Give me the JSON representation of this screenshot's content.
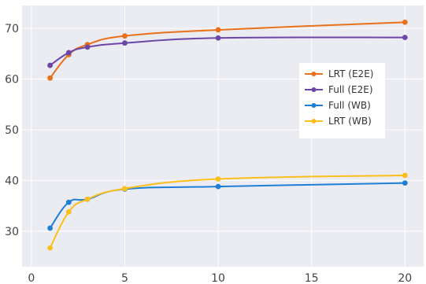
{
  "chart_data": {
    "type": "line",
    "x_ticks": [
      0,
      5,
      10,
      15,
      20
    ],
    "y_ticks": [
      30,
      40,
      50,
      60,
      70
    ],
    "xlim": [
      -0.5,
      21
    ],
    "ylim": [
      23,
      74.5
    ],
    "grid": true,
    "legend_position": "center-right",
    "series": [
      {
        "name": "LRT (E2E)",
        "color": "#e8711a",
        "x": [
          1,
          2,
          3,
          5,
          10,
          20
        ],
        "y": [
          60.2,
          64.8,
          66.8,
          68.5,
          69.7,
          71.2
        ]
      },
      {
        "name": "Full (E2E)",
        "color": "#6c47a8",
        "x": [
          1,
          2,
          3,
          5,
          10,
          20
        ],
        "y": [
          62.7,
          65.2,
          66.3,
          67.1,
          68.1,
          68.2
        ]
      },
      {
        "name": "Full (WB)",
        "color": "#1e7fd4",
        "x": [
          1,
          2,
          3,
          5,
          10,
          20
        ],
        "y": [
          30.6,
          35.7,
          36.3,
          38.3,
          38.8,
          39.5
        ]
      },
      {
        "name": "LRT (WB)",
        "color": "#fbbf1c",
        "x": [
          1,
          2,
          3,
          5,
          10,
          20
        ],
        "y": [
          26.7,
          33.8,
          36.3,
          38.4,
          40.3,
          41.0
        ]
      }
    ]
  }
}
